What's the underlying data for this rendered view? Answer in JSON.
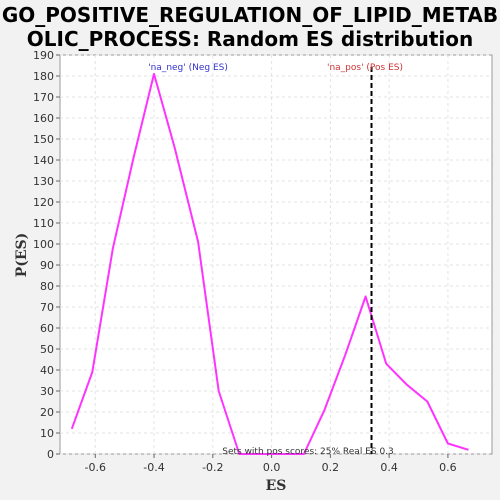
{
  "chart_data": {
    "type": "line",
    "title_line1": "GO_POSITIVE_REGULATION_OF_LIPID_METAB",
    "title_line2": "OLIC_PROCESS: Random ES distribution",
    "xlabel": "ES",
    "ylabel": "P(ES)",
    "xlim": [
      -0.72,
      0.75
    ],
    "ylim": [
      0,
      190
    ],
    "x_ticks": [
      "-0.6",
      "-0.4",
      "-0.2",
      "0.0",
      "0.2",
      "0.4",
      "0.6"
    ],
    "x_tick_values": [
      -0.6,
      -0.4,
      -0.2,
      0.0,
      0.2,
      0.4,
      0.6
    ],
    "y_ticks": [
      0,
      10,
      20,
      30,
      40,
      50,
      60,
      70,
      80,
      90,
      100,
      110,
      120,
      130,
      140,
      150,
      160,
      170,
      180,
      190
    ],
    "grid": true,
    "series": [
      {
        "color": "#ff33ff",
        "x": [
          -0.68,
          -0.61,
          -0.54,
          -0.47,
          -0.4,
          -0.33,
          -0.25,
          -0.18,
          -0.11,
          -0.04,
          0.04,
          0.11,
          0.18,
          0.25,
          0.32,
          0.39,
          0.46,
          0.53,
          0.6,
          0.67
        ],
        "y": [
          12,
          39,
          98,
          141,
          181,
          146,
          101,
          30,
          0,
          0,
          0,
          0,
          21,
          47,
          75,
          43,
          33,
          25,
          5,
          2
        ]
      }
    ],
    "vline": {
      "x": 0.34,
      "color": "#000000",
      "style": "dashed"
    },
    "legend_neg": {
      "text": "'na_neg' (Neg ES)",
      "color": "#3333cc"
    },
    "legend_pos": {
      "text": "'na_pos' (Pos ES)",
      "color": "#cc3333"
    },
    "annotation": "Sets with pos scores: 25%    Real ES 0.3"
  }
}
